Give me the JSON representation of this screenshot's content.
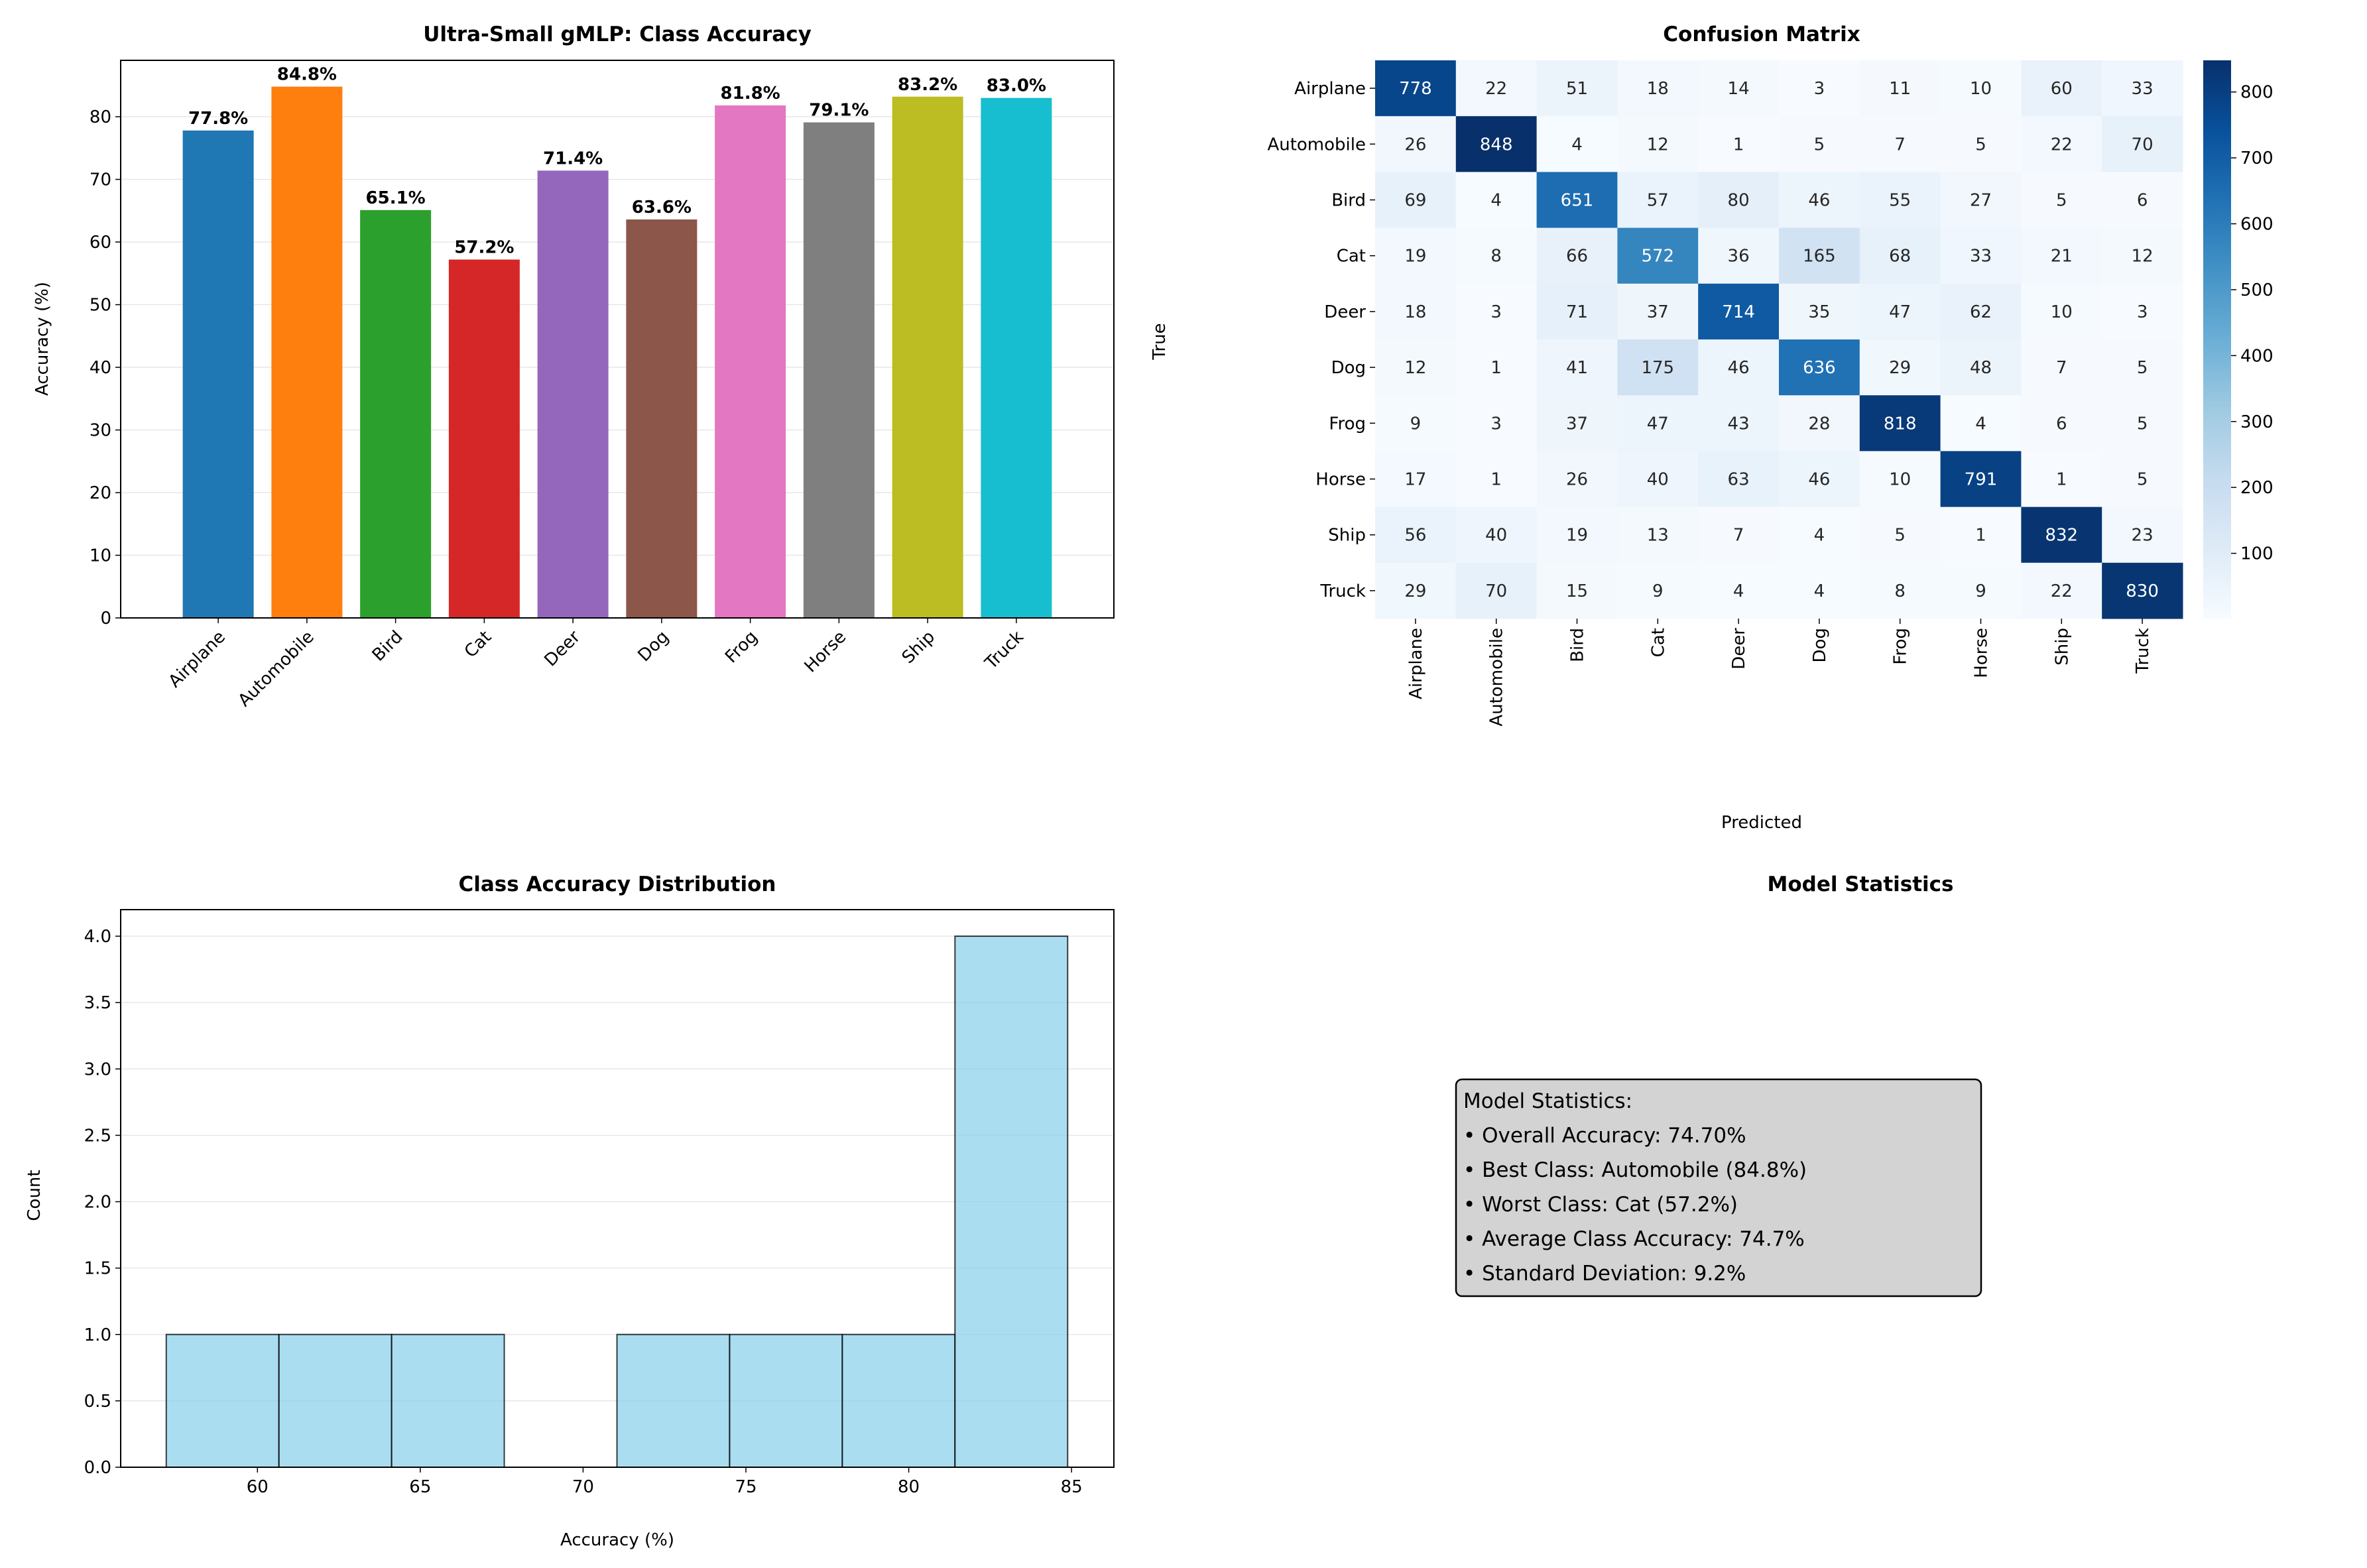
{
  "chart_data": [
    {
      "type": "bar",
      "title": "Ultra-Small gMLP: Class Accuracy",
      "xlabel": "",
      "ylabel": "Accuracy (%)",
      "ylim": [
        0,
        89
      ],
      "yticks": [
        0,
        10,
        20,
        30,
        40,
        50,
        60,
        70,
        80
      ],
      "grid": "y",
      "categories": [
        "Airplane",
        "Automobile",
        "Bird",
        "Cat",
        "Deer",
        "Dog",
        "Frog",
        "Horse",
        "Ship",
        "Truck"
      ],
      "values": [
        77.8,
        84.8,
        65.1,
        57.2,
        71.4,
        63.6,
        81.8,
        79.1,
        83.2,
        83.0
      ],
      "value_labels": [
        "77.8%",
        "84.8%",
        "65.1%",
        "57.2%",
        "71.4%",
        "63.6%",
        "81.8%",
        "79.1%",
        "83.2%",
        "83.0%"
      ],
      "colors": [
        "#1f77b4",
        "#ff7f0e",
        "#2ca02c",
        "#d62728",
        "#9467bd",
        "#8c564b",
        "#e377c2",
        "#7f7f7f",
        "#bcbd22",
        "#17becf"
      ]
    },
    {
      "type": "heatmap",
      "title": "Confusion Matrix",
      "xlabel": "Predicted",
      "ylabel": "True",
      "row_labels": [
        "Airplane",
        "Automobile",
        "Bird",
        "Cat",
        "Deer",
        "Dog",
        "Frog",
        "Horse",
        "Ship",
        "Truck"
      ],
      "col_labels": [
        "Airplane",
        "Automobile",
        "Bird",
        "Cat",
        "Deer",
        "Dog",
        "Frog",
        "Horse",
        "Ship",
        "Truck"
      ],
      "matrix": [
        [
          778,
          22,
          51,
          18,
          14,
          3,
          11,
          10,
          60,
          33
        ],
        [
          26,
          848,
          4,
          12,
          1,
          5,
          7,
          5,
          22,
          70
        ],
        [
          69,
          4,
          651,
          57,
          80,
          46,
          55,
          27,
          5,
          6
        ],
        [
          19,
          8,
          66,
          572,
          36,
          165,
          68,
          33,
          21,
          12
        ],
        [
          18,
          3,
          71,
          37,
          714,
          35,
          47,
          62,
          10,
          3
        ],
        [
          12,
          1,
          41,
          175,
          46,
          636,
          29,
          48,
          7,
          5
        ],
        [
          9,
          3,
          37,
          47,
          43,
          28,
          818,
          4,
          6,
          5
        ],
        [
          17,
          1,
          26,
          40,
          63,
          46,
          10,
          791,
          1,
          5
        ],
        [
          56,
          40,
          19,
          13,
          7,
          4,
          5,
          1,
          832,
          23
        ],
        [
          29,
          70,
          15,
          9,
          4,
          4,
          8,
          9,
          22,
          830
        ]
      ],
      "colormap": "Blues",
      "vmin": 1,
      "vmax": 848,
      "colorbar_ticks": [
        100,
        200,
        300,
        400,
        500,
        600,
        700,
        800
      ]
    },
    {
      "type": "bar",
      "subtype": "histogram",
      "title": "Class Accuracy Distribution",
      "xlabel": "Accuracy (%)",
      "ylabel": "Count",
      "bin_edges": [
        57.2,
        60.66,
        64.12,
        67.58,
        71.04,
        74.5,
        77.96,
        81.42,
        84.88
      ],
      "counts": [
        1,
        1,
        1,
        0,
        1,
        1,
        1,
        4
      ],
      "xlim": [
        55.8,
        86.3
      ],
      "ylim": [
        0,
        4.2
      ],
      "xticks": [
        60,
        65,
        70,
        75,
        80,
        85
      ],
      "yticks": [
        "0.0",
        "0.5",
        "1.0",
        "1.5",
        "2.0",
        "2.5",
        "3.0",
        "3.5",
        "4.0"
      ],
      "grid": "y",
      "color": "#87CEEB"
    }
  ],
  "stats_panel": {
    "title": "Model Statistics",
    "lines": [
      "Model Statistics:",
      "• Overall Accuracy: 74.70%",
      "• Best Class: Automobile (84.8%)",
      "• Worst Class: Cat (57.2%)",
      "• Average Class Accuracy: 74.7%",
      "• Standard Deviation: 9.2%"
    ]
  }
}
